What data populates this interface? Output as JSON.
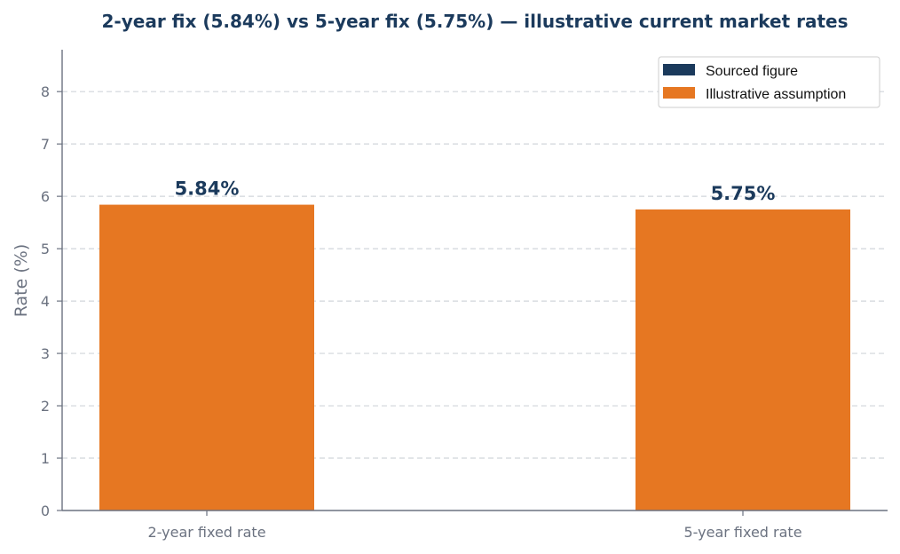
{
  "chart_data": {
    "type": "bar",
    "title": "2-year fix (5.84%) vs 5-year fix (5.75%) — illustrative current market rates",
    "xlabel": "",
    "ylabel": "Rate (%)",
    "categories": [
      "2-year fixed rate",
      "5-year fixed rate"
    ],
    "values": [
      5.84,
      5.75
    ],
    "data_labels": [
      "5.84%",
      "5.75%"
    ],
    "bar_kinds": [
      "illustrative",
      "illustrative"
    ],
    "ylim": [
      0,
      8.8
    ],
    "yticks": [
      0,
      1,
      2,
      3,
      4,
      5,
      6,
      7,
      8
    ],
    "grid": "horizontal dashed",
    "legend": {
      "placement": "top-right",
      "entries": [
        {
          "label": "Sourced figure",
          "color": "#1b3a5c"
        },
        {
          "label": "Illustrative assumption",
          "color": "#e67722"
        }
      ]
    },
    "colors": {
      "sourced": "#1b3a5c",
      "illustrative": "#e67722",
      "axis": "#6b7280",
      "grid": "#d1d5db",
      "title": "#1b3a5c"
    }
  }
}
